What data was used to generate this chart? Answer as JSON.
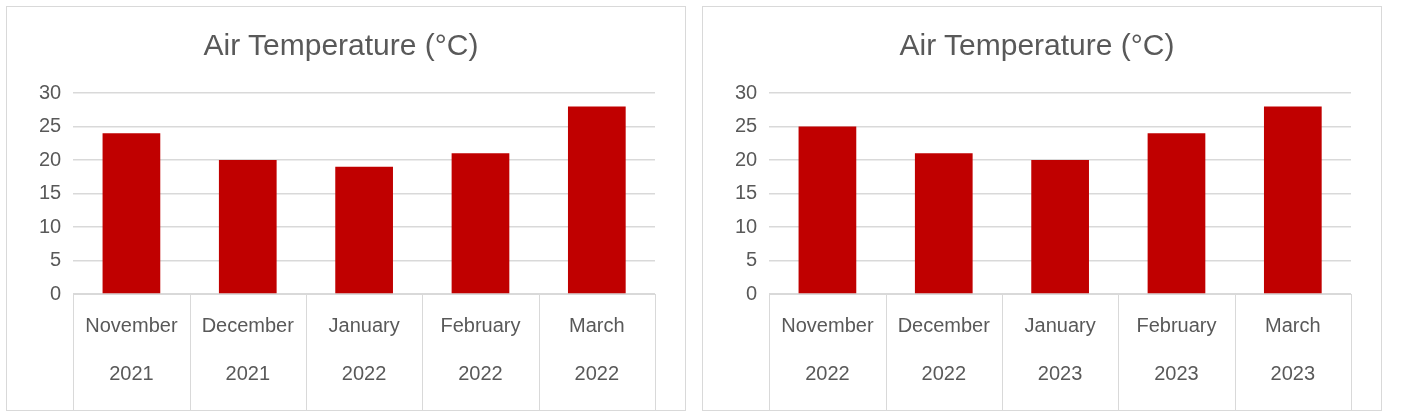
{
  "chart_data": [
    {
      "type": "bar",
      "title": "Air Temperature (°C)",
      "categories": [
        "November 2021",
        "December 2021",
        "January 2022",
        "February 2022",
        "March 2022"
      ],
      "values": [
        24,
        20,
        19,
        21,
        28
      ],
      "color": "#c00000",
      "ylim": [
        0,
        30
      ],
      "yticks": [
        0,
        5,
        10,
        15,
        20,
        25,
        30
      ],
      "grid": "y",
      "legend": false
    },
    {
      "type": "bar",
      "title": "Air Temperature (°C)",
      "categories": [
        "November 2022",
        "December 2022",
        "January 2023",
        "February 2023",
        "March 2023"
      ],
      "values": [
        25,
        21,
        20,
        24,
        28
      ],
      "color": "#c00000",
      "ylim": [
        0,
        30
      ],
      "yticks": [
        0,
        5,
        10,
        15,
        20,
        25,
        30
      ],
      "grid": "y",
      "legend": false
    }
  ]
}
